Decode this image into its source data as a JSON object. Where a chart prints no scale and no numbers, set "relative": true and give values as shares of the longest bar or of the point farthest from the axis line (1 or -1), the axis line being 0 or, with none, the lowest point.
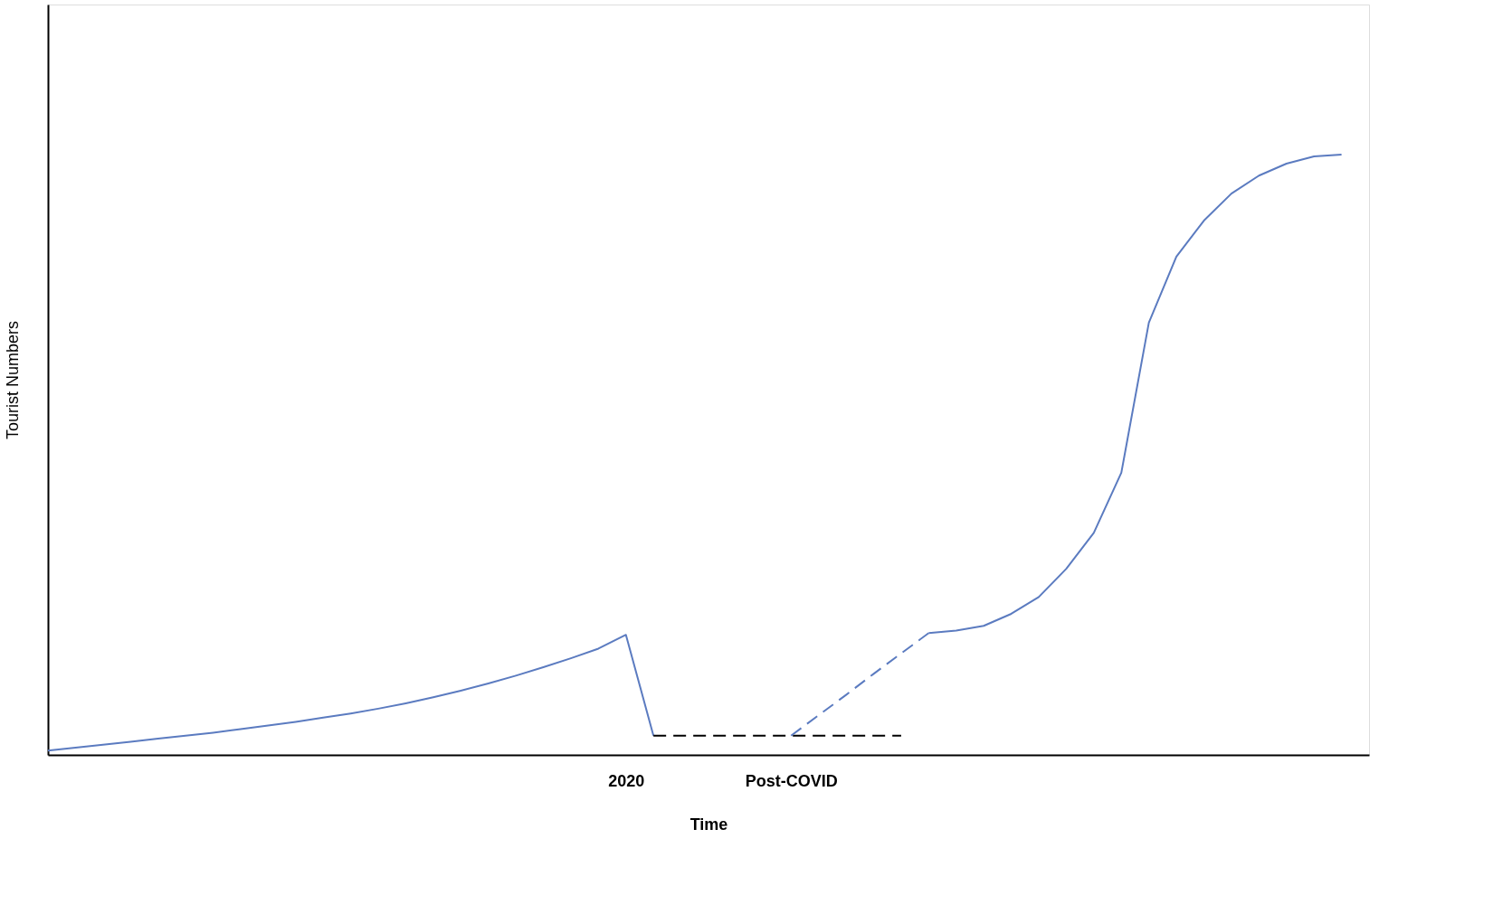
{
  "chart_data": {
    "type": "line",
    "relative": true,
    "xlabel": "Time",
    "ylabel": "Tourist Numbers",
    "grid": false,
    "categories": [
      null,
      null,
      null,
      null,
      null,
      null,
      null,
      null,
      null,
      null,
      null,
      null,
      null,
      null,
      null,
      null,
      null,
      null,
      null,
      null,
      null,
      "2020",
      null,
      null,
      null,
      null,
      null,
      "Post-COVID",
      null,
      null,
      null,
      null,
      null,
      null,
      null,
      null,
      null,
      null,
      null,
      null,
      null,
      null,
      null,
      null,
      null,
      null,
      null,
      null,
      null
    ],
    "series": [
      {
        "color": "#5b7bc0",
        "line_style": "solid",
        "values": [
          0.007,
          0.012,
          0.017,
          0.022,
          0.027,
          0.032,
          0.037,
          0.043,
          0.049,
          0.055,
          0.062,
          0.069,
          0.077,
          0.086,
          0.096,
          0.107,
          0.119,
          0.132,
          0.146,
          0.161,
          0.177,
          0.2,
          0.032,
          null,
          null,
          null,
          null,
          null,
          null,
          null,
          null,
          null,
          null,
          null,
          null,
          null,
          null,
          null,
          null,
          null,
          null,
          null,
          null,
          null,
          null,
          null,
          null,
          null,
          null
        ]
      },
      {
        "color": "#000000",
        "line_style": "dashed",
        "values": [
          null,
          null,
          null,
          null,
          null,
          null,
          null,
          null,
          null,
          null,
          null,
          null,
          null,
          null,
          null,
          null,
          null,
          null,
          null,
          null,
          null,
          null,
          0.032,
          0.032,
          0.032,
          0.032,
          0.032,
          0.032,
          0.032,
          0.032,
          0.032,
          0.032,
          null,
          null,
          null,
          null,
          null,
          null,
          null,
          null,
          null,
          null,
          null,
          null,
          null,
          null,
          null,
          null,
          null
        ]
      },
      {
        "color": "#5b7bc0",
        "line_style": "dashed",
        "values": [
          null,
          null,
          null,
          null,
          null,
          null,
          null,
          null,
          null,
          null,
          null,
          null,
          null,
          null,
          null,
          null,
          null,
          null,
          null,
          null,
          null,
          null,
          null,
          null,
          null,
          null,
          null,
          0.032,
          0.066,
          0.1,
          0.135,
          0.169,
          0.203,
          null,
          null,
          null,
          null,
          null,
          null,
          null,
          null,
          null,
          null,
          null,
          null,
          null,
          null,
          null,
          null
        ]
      },
      {
        "color": "#5b7bc0",
        "line_style": "solid",
        "values": [
          null,
          null,
          null,
          null,
          null,
          null,
          null,
          null,
          null,
          null,
          null,
          null,
          null,
          null,
          null,
          null,
          null,
          null,
          null,
          null,
          null,
          null,
          null,
          null,
          null,
          null,
          null,
          null,
          null,
          null,
          null,
          null,
          0.203,
          0.207,
          0.215,
          0.235,
          0.263,
          0.31,
          0.37,
          0.47,
          0.72,
          0.83,
          0.89,
          0.935,
          0.965,
          0.985,
          0.997,
          1.0,
          null
        ]
      }
    ]
  }
}
